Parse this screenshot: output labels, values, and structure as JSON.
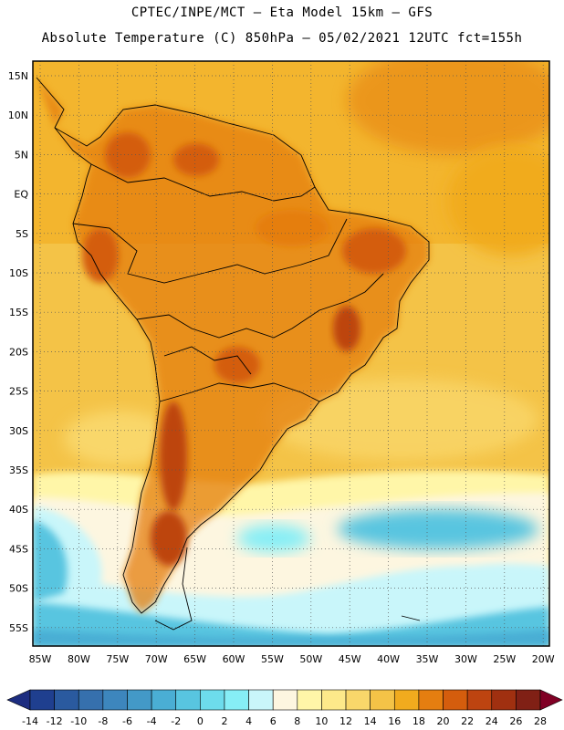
{
  "header": {
    "line1": "CPTEC/INPE/MCT –   Eta Model 15km – GFS",
    "line2": "Absolute Temperature (C) 850hPa – 05/02/2021 12UTC fct=155h"
  },
  "map": {
    "lat_labels": [
      "15N",
      "10N",
      "5N",
      "EQ",
      "5S",
      "10S",
      "15S",
      "20S",
      "25S",
      "30S",
      "35S",
      "40S",
      "45S",
      "50S",
      "55S"
    ],
    "lon_labels": [
      "85W",
      "80W",
      "75W",
      "70W",
      "65W",
      "60W",
      "55W",
      "50W",
      "45W",
      "40W",
      "35W",
      "30W",
      "25W",
      "20W"
    ],
    "gridlines": "dotted"
  },
  "colorbar": {
    "ticks": [
      "-14",
      "-12",
      "-10",
      "-8",
      "-6",
      "-4",
      "-2",
      "0",
      "2",
      "4",
      "6",
      "8",
      "10",
      "12",
      "14",
      "16",
      "18",
      "20",
      "22",
      "24",
      "26",
      "28"
    ],
    "colors": [
      "#1f3f8f",
      "#2a5a9f",
      "#3670ad",
      "#3d86bd",
      "#4399c7",
      "#4aaed4",
      "#58c5e0",
      "#6ddcec",
      "#86eef6",
      "#c9f6fa",
      "#fdf6e0",
      "#fff6a8",
      "#fde98a",
      "#f9d76a",
      "#f4c347",
      "#f1ab1e",
      "#e57e10",
      "#d45d0d",
      "#bd4410",
      "#a03010",
      "#802015"
    ],
    "under_color": "#1d2d80",
    "over_color": "#800025"
  }
}
